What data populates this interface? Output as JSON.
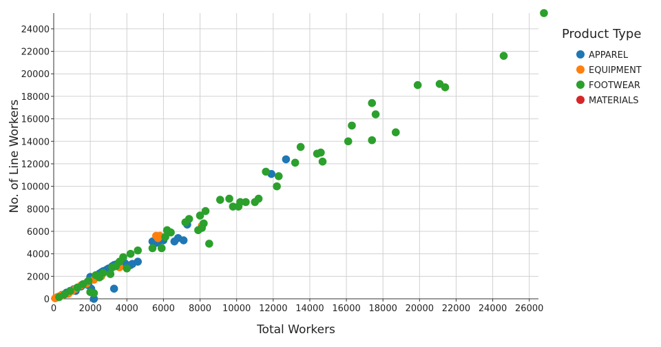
{
  "chart_data": {
    "type": "scatter",
    "title": "",
    "xlabel": "Total Workers",
    "ylabel": "No. of Line Workers",
    "xlim": [
      0,
      26500
    ],
    "ylim": [
      0,
      25400
    ],
    "xticks": [
      0,
      2000,
      4000,
      6000,
      8000,
      10000,
      12000,
      14000,
      16000,
      18000,
      20000,
      22000,
      24000,
      26000
    ],
    "yticks": [
      0,
      2000,
      4000,
      6000,
      8000,
      10000,
      12000,
      14000,
      16000,
      18000,
      20000,
      22000,
      24000
    ],
    "grid": true,
    "legend": {
      "title": "Product Type",
      "position": "right"
    },
    "series": [
      {
        "name": "APPAREL",
        "color": "#1f77b4",
        "points": [
          [
            200,
            150
          ],
          [
            450,
            350
          ],
          [
            700,
            550
          ],
          [
            900,
            700
          ],
          [
            1100,
            850
          ],
          [
            1300,
            1000
          ],
          [
            1500,
            1100
          ],
          [
            1700,
            1300
          ],
          [
            1850,
            1500
          ],
          [
            2000,
            1700
          ],
          [
            2100,
            1800
          ],
          [
            2200,
            1950
          ],
          [
            2300,
            2000
          ],
          [
            2400,
            2100
          ],
          [
            2500,
            2250
          ],
          [
            2600,
            2350
          ],
          [
            2700,
            2450
          ],
          [
            2800,
            2500
          ],
          [
            2900,
            2600
          ],
          [
            3000,
            2700
          ],
          [
            3100,
            2650
          ],
          [
            3200,
            2900
          ],
          [
            3300,
            3000
          ],
          [
            3400,
            3050
          ],
          [
            3500,
            3100
          ],
          [
            3700,
            3250
          ],
          [
            3900,
            3150
          ],
          [
            4200,
            3000
          ],
          [
            4300,
            3100
          ],
          [
            4600,
            3300
          ],
          [
            2200,
            0
          ],
          [
            3300,
            900
          ],
          [
            1900,
            1200
          ],
          [
            2050,
            900
          ],
          [
            2000,
            1950
          ],
          [
            1200,
            700
          ],
          [
            5400,
            5100
          ],
          [
            5500,
            4900
          ],
          [
            5700,
            5000
          ],
          [
            6000,
            5200
          ],
          [
            6600,
            5100
          ],
          [
            6800,
            5400
          ],
          [
            7100,
            5200
          ],
          [
            7300,
            6600
          ],
          [
            11900,
            11100
          ],
          [
            12700,
            12400
          ],
          [
            2600,
            2200
          ],
          [
            3000,
            2400
          ]
        ]
      },
      {
        "name": "EQUIPMENT",
        "color": "#ff7f0e",
        "points": [
          [
            80,
            50
          ],
          [
            150,
            100
          ],
          [
            250,
            180
          ],
          [
            350,
            250
          ],
          [
            500,
            350
          ],
          [
            800,
            450
          ],
          [
            1000,
            700
          ],
          [
            1200,
            900
          ],
          [
            1500,
            1200
          ],
          [
            1800,
            1350
          ],
          [
            2200,
            1700
          ],
          [
            2600,
            2000
          ],
          [
            3600,
            2800
          ],
          [
            5600,
            5600
          ],
          [
            5700,
            5400
          ],
          [
            5800,
            5600
          ],
          [
            8100,
            6500
          ]
        ]
      },
      {
        "name": "FOOTWEAR",
        "color": "#2ca02c",
        "points": [
          [
            300,
            150
          ],
          [
            600,
            400
          ],
          [
            900,
            700
          ],
          [
            1300,
            1000
          ],
          [
            1600,
            1300
          ],
          [
            1900,
            1600
          ],
          [
            2000,
            600
          ],
          [
            2200,
            500
          ],
          [
            2300,
            2100
          ],
          [
            2500,
            1900
          ],
          [
            2700,
            2300
          ],
          [
            3100,
            2200
          ],
          [
            3200,
            2800
          ],
          [
            3400,
            2900
          ],
          [
            3600,
            3300
          ],
          [
            3800,
            3700
          ],
          [
            4000,
            2700
          ],
          [
            4200,
            4000
          ],
          [
            4600,
            4300
          ],
          [
            5400,
            4500
          ],
          [
            5900,
            4500
          ],
          [
            6100,
            5500
          ],
          [
            6200,
            6100
          ],
          [
            6400,
            5900
          ],
          [
            7200,
            6800
          ],
          [
            7400,
            7100
          ],
          [
            7900,
            6100
          ],
          [
            8000,
            7400
          ],
          [
            8100,
            6300
          ],
          [
            8200,
            6700
          ],
          [
            8300,
            7800
          ],
          [
            8500,
            4900
          ],
          [
            9100,
            8800
          ],
          [
            9600,
            8900
          ],
          [
            9800,
            8200
          ],
          [
            10100,
            8200
          ],
          [
            10200,
            8600
          ],
          [
            10500,
            8600
          ],
          [
            11000,
            8600
          ],
          [
            11200,
            8900
          ],
          [
            11600,
            11300
          ],
          [
            12200,
            10000
          ],
          [
            12300,
            10900
          ],
          [
            13200,
            12100
          ],
          [
            13500,
            13500
          ],
          [
            14400,
            12900
          ],
          [
            14600,
            13000
          ],
          [
            14700,
            12200
          ],
          [
            16100,
            14000
          ],
          [
            16300,
            15400
          ],
          [
            17400,
            17400
          ],
          [
            17400,
            14100
          ],
          [
            17600,
            16400
          ],
          [
            18700,
            14800
          ],
          [
            19900,
            19000
          ],
          [
            21100,
            19100
          ],
          [
            21400,
            18800
          ],
          [
            24600,
            21600
          ],
          [
            26800,
            25400
          ]
        ]
      },
      {
        "name": "MATERIALS",
        "color": "#d62728",
        "points": []
      }
    ]
  }
}
